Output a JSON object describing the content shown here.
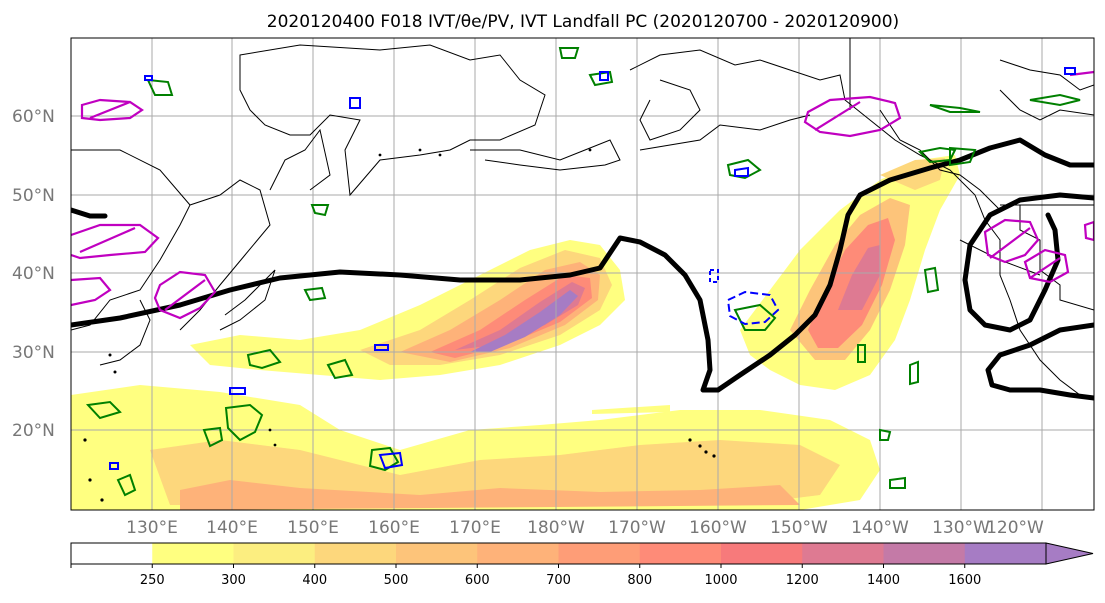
{
  "title": "2020120400 F018 IVT/θe/PV, IVT Landfall PC (2020120700 - 2020120900)",
  "lat_labels": [
    "60°N",
    "50°N",
    "40°N",
    "30°N",
    "20°N"
  ],
  "lon_labels": [
    "130°E",
    "140°E",
    "150°E",
    "160°E",
    "170°E",
    "180°W",
    "170°W",
    "160°W",
    "150°W",
    "140°W",
    "130°W",
    "120°W"
  ],
  "colorbar": {
    "levels": [
      "250",
      "300",
      "400",
      "500",
      "600",
      "700",
      "800",
      "1000",
      "1200",
      "1400",
      "1600"
    ],
    "colors": [
      "#ffff80",
      "#fcee80",
      "#fdd77c",
      "#fdc47a",
      "#feb279",
      "#fe9d77",
      "#fe8b78",
      "#f77a7b",
      "#de7a92",
      "#c47aa7",
      "#a67cc4"
    ],
    "below_color": "#ffffff",
    "extend": "max"
  },
  "colors": {
    "ivt_low": "#ffff80",
    "ivt_mid": "#fdc47a",
    "ivt_high": "#fe8b78",
    "ivt_peak": "#a67cc4",
    "theta_e_contour": "#000000",
    "pv_contour": "#c000c0",
    "green_contour": "#008000",
    "blue_contour": "#0000ff",
    "coastline": "#000000",
    "grid": "#aaaaaa"
  }
}
